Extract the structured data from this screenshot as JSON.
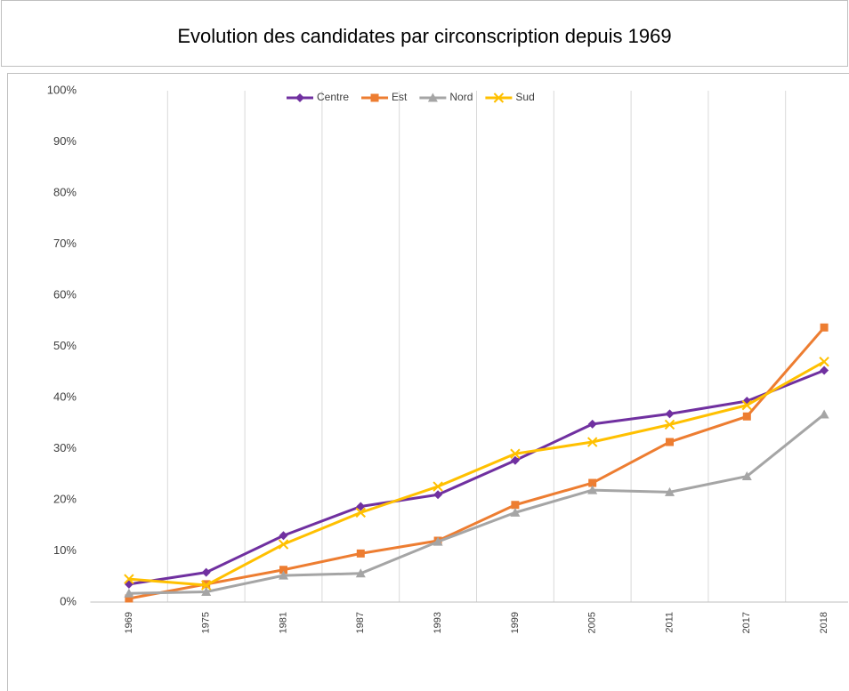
{
  "chart_data": {
    "type": "line",
    "title": "Evolution des candidates par circonscription depuis 1969",
    "categories": [
      "1969",
      "1975",
      "1981",
      "1987",
      "1993",
      "1999",
      "2005",
      "2011",
      "2017",
      "2018"
    ],
    "series": [
      {
        "name": "Centre",
        "color": "#7030a0",
        "marker": "diamond",
        "values": [
          3.5,
          5.8,
          13,
          18.7,
          21,
          27.7,
          34.8,
          36.8,
          39.3,
          45.3
        ]
      },
      {
        "name": "Est",
        "color": "#ed7d31",
        "marker": "square",
        "values": [
          0.7,
          3.5,
          6.3,
          9.5,
          12,
          19,
          23.3,
          31.3,
          36.3,
          53.7
        ]
      },
      {
        "name": "Nord",
        "color": "#a5a5a5",
        "marker": "triangle",
        "values": [
          1.7,
          2,
          5.2,
          5.6,
          11.8,
          17.5,
          21.9,
          21.5,
          24.6,
          36.7
        ]
      },
      {
        "name": "Sud",
        "color": "#ffc000",
        "marker": "x",
        "values": [
          4.5,
          3.3,
          11.3,
          17.5,
          22.6,
          29,
          31.3,
          34.7,
          38.5,
          47
        ]
      }
    ],
    "ylim": [
      0,
      100
    ],
    "yticks": [
      {
        "value": 0,
        "label": "0%"
      },
      {
        "value": 10,
        "label": "10%"
      },
      {
        "value": 20,
        "label": "20%"
      },
      {
        "value": 30,
        "label": "30%"
      },
      {
        "value": 40,
        "label": "40%"
      },
      {
        "value": 50,
        "label": "50%"
      },
      {
        "value": 60,
        "label": "60%"
      },
      {
        "value": 70,
        "label": "70%"
      },
      {
        "value": 80,
        "label": "80%"
      },
      {
        "value": 90,
        "label": "90%"
      },
      {
        "value": 100,
        "label": "100%"
      }
    ],
    "legend": "top"
  }
}
